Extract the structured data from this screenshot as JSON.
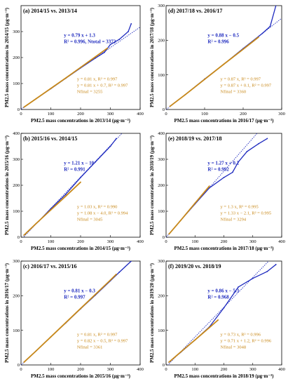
{
  "chart_data": [
    {
      "type": "scatter",
      "panel": "(a) 2014/15 vs. 2013/14",
      "xlabel": "PM2.5 mass concentrations in 2013/14 (μg·m⁻³)",
      "ylabel": "PM2.5 mass concentrations in 2014/15 (μg·m⁻³)",
      "xlim": [
        0,
        400
      ],
      "ylim": [
        0,
        400
      ],
      "xticks": [
        0,
        100,
        200,
        300,
        400
      ],
      "yticks": [
        0,
        100,
        200,
        300
      ],
      "blue_annotation": [
        "y = 0.79 x + 1.3",
        "R² = 0.996, Ntotal = 3372"
      ],
      "orange_annotation": [
        "y = 0.81 x, R² = 0.997",
        "y = 0.81 x + 0.7, R² = 0.997",
        "Nfinal = 3255"
      ],
      "series": [
        {
          "color": "#1f2bbf",
          "x": [
            10,
            50,
            100,
            150,
            200,
            250,
            280,
            300,
            330,
            360,
            370
          ],
          "y": [
            9,
            41,
            80,
            120,
            160,
            198,
            220,
            250,
            270,
            300,
            330
          ]
        },
        {
          "color": "#c8891a",
          "x": [
            10,
            50,
            100,
            150,
            200,
            250,
            290
          ],
          "y": [
            9,
            41,
            81,
            121,
            162,
            203,
            236
          ]
        }
      ],
      "fit_line": {
        "slope": 0.79,
        "intercept": 1.3,
        "color": "#1f2bbf"
      }
    },
    {
      "type": "scatter",
      "panel": "(b) 2015/16 vs. 2014/15",
      "xlabel": "PM2.5 mass concentrations in 2014/15 (μg·m⁻³)",
      "ylabel": "PM2.5 mass concentrations in 2015/16 (μg·m⁻³)",
      "xlim": [
        0,
        400
      ],
      "ylim": [
        0,
        400
      ],
      "xticks": [
        0,
        100,
        200,
        300,
        400
      ],
      "yticks": [
        0,
        100,
        200,
        300,
        400
      ],
      "blue_annotation": [
        "y = 1.21 x − 10",
        "R² = 0.991"
      ],
      "orange_annotation": [
        "y = 1.03 x, R² = 0.990",
        "y = 1.08 x − 4.0, R² = 0.994",
        "Nfinal = 3045"
      ],
      "series": [
        {
          "color": "#1f2bbf",
          "x": [
            10,
            60,
            100,
            150,
            200,
            250,
            300,
            320
          ],
          "y": [
            8,
            62,
            110,
            165,
            230,
            290,
            350,
            380
          ]
        },
        {
          "color": "#c8891a",
          "x": [
            10,
            50,
            100,
            150,
            200
          ],
          "y": [
            8,
            52,
            105,
            158,
            212
          ]
        }
      ],
      "fit_line": {
        "slope": 1.21,
        "intercept": -10,
        "color": "#1f2bbf"
      }
    },
    {
      "type": "scatter",
      "panel": "(c) 2016/17 vs. 2015/16",
      "xlabel": "PM2.5 mass concentrations in 2015/16 (μg·m⁻³)",
      "ylabel": "PM2.5 mass concentrations in 2016/17 (μg·m⁻³)",
      "xlim": [
        0,
        400
      ],
      "ylim": [
        0,
        300
      ],
      "xticks": [
        0,
        100,
        200,
        300,
        400
      ],
      "yticks": [
        0,
        100,
        200,
        300
      ],
      "blue_annotation": [
        "y = 0.81 x − 0.3",
        "R² = 0.997"
      ],
      "orange_annotation": [
        "y = 0.81 x, R² = 0.997",
        "y = 0.82 x − 0.5, R² = 0.997",
        "Nfinal = 3361"
      ],
      "series": [
        {
          "color": "#1f2bbf",
          "x": [
            10,
            50,
            100,
            150,
            200,
            250,
            300,
            330,
            370
          ],
          "y": [
            8,
            40,
            81,
            121,
            162,
            202,
            243,
            268,
            300
          ]
        },
        {
          "color": "#c8891a",
          "x": [
            10,
            50,
            100,
            150,
            200,
            250,
            300,
            320
          ],
          "y": [
            8,
            40,
            81,
            122,
            163,
            204,
            245,
            262
          ]
        }
      ],
      "fit_line": {
        "slope": 0.81,
        "intercept": -0.3,
        "color": "#1f2bbf"
      }
    },
    {
      "type": "scatter",
      "panel": "(d) 2017/18 vs. 2016/17",
      "xlabel": "PM2.5 mass concentrations in 2016/17 (μg·m⁻³)",
      "ylabel": "PM2.5 mass concentrations in 2017/18 (μg·m⁻³)",
      "xlim": [
        0,
        300
      ],
      "ylim": [
        0,
        300
      ],
      "xticks": [
        0,
        100,
        200,
        300
      ],
      "yticks": [
        0,
        100,
        200,
        300
      ],
      "blue_annotation": [
        "y = 0.88 x − 0.5",
        "R² = 0.996"
      ],
      "orange_annotation": [
        "y = 0.87 x, R² = 0.997",
        "y = 0.87 x + 0.1, R² = 0.997",
        "Nfinal = 3360"
      ],
      "series": [
        {
          "color": "#1f2bbf",
          "x": [
            10,
            50,
            100,
            150,
            200,
            250,
            270,
            285
          ],
          "y": [
            9,
            43,
            88,
            131,
            176,
            220,
            240,
            300
          ]
        },
        {
          "color": "#c8891a",
          "x": [
            10,
            50,
            100,
            150,
            200,
            240
          ],
          "y": [
            9,
            43,
            87,
            131,
            174,
            209
          ]
        }
      ],
      "fit_line": {
        "slope": 0.88,
        "intercept": -0.5,
        "color": "#1f2bbf"
      }
    },
    {
      "type": "scatter",
      "panel": "(e) 2018/19 vs. 2017/18",
      "xlabel": "PM2.5 mass concentrations in 2017/18 (μg·m⁻³)",
      "ylabel": "PM2.5 mass concentrations in 2018/19 (μg·m⁻³)",
      "xlim": [
        0,
        400
      ],
      "ylim": [
        0,
        400
      ],
      "xticks": [
        0,
        100,
        200,
        300,
        400
      ],
      "yticks": [
        0,
        100,
        200,
        300,
        400
      ],
      "blue_annotation": [
        "y = 1.27 x + 0.2",
        "R² = 0.992"
      ],
      "orange_annotation": [
        "y = 1.3 x, R² = 0.995",
        "y = 1.33 x − 2.1, R² = 0.995",
        "Nfinal = 3294"
      ],
      "series": [
        {
          "color": "#1f2bbf",
          "x": [
            10,
            50,
            100,
            150,
            200,
            230,
            250,
            280,
            320,
            350
          ],
          "y": [
            12,
            64,
            128,
            190,
            230,
            250,
            290,
            330,
            360,
            380
          ]
        },
        {
          "color": "#c8891a",
          "x": [
            10,
            50,
            100,
            150
          ],
          "y": [
            12,
            64,
            131,
            197
          ]
        }
      ],
      "fit_line": {
        "slope": 1.27,
        "intercept": 0.2,
        "color": "#1f2bbf"
      }
    },
    {
      "type": "scatter",
      "panel": "(f) 2019/20 vs. 2018/19",
      "xlabel": "PM2.5 mass concentrations in 2018/19 (μg·m⁻³)",
      "ylabel": "PM2.5 mass concentrations in 2019/20 (μg·m⁻³)",
      "xlim": [
        0,
        400
      ],
      "ylim": [
        0,
        300
      ],
      "xticks": [
        0,
        100,
        200,
        300,
        400
      ],
      "yticks": [
        0,
        100,
        200,
        300
      ],
      "blue_annotation": [
        "y = 0.86 x − 5.3",
        "R² = 0.968"
      ],
      "orange_annotation": [
        "y = 0.73 x, R² = 0.996",
        "y = 0.71 x + 1.2, R² = 0.996",
        "Nfinal = 3048"
      ],
      "series": [
        {
          "color": "#1f2bbf",
          "x": [
            10,
            50,
            100,
            150,
            200,
            250,
            300,
            350,
            380
          ],
          "y": [
            8,
            36,
            72,
            110,
            165,
            225,
            250,
            270,
            290
          ]
        },
        {
          "color": "#c8891a",
          "x": [
            10,
            50,
            100,
            150,
            180
          ],
          "y": [
            8,
            37,
            72,
            108,
            130
          ]
        }
      ],
      "fit_line": {
        "slope": 0.86,
        "intercept": -5.3,
        "color": "#1f2bbf"
      }
    }
  ]
}
